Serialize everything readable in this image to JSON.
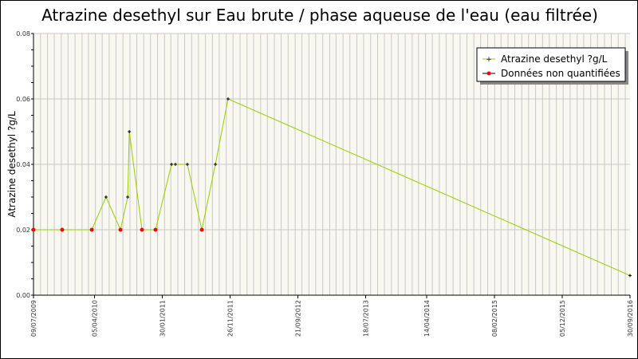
{
  "chart_data": {
    "type": "line",
    "title": "Atrazine desethyl sur Eau brute / phase aqueuse de l'eau (eau filtrée)",
    "xlabel": "",
    "ylabel": "Atrazine desethyl ?g/L",
    "ylim": [
      0,
      0.08
    ],
    "yticks": [
      "0.00",
      "0.02",
      "0.04",
      "0.06",
      "0.08"
    ],
    "xlim": [
      "2009-07-09",
      "2016-09-30"
    ],
    "xticks": [
      {
        "date": "2009-07-09",
        "label": "09/07/2009"
      },
      {
        "date": "2010-04-05",
        "label": "05/04/2010"
      },
      {
        "date": "2011-01-30",
        "label": "30/01/2011"
      },
      {
        "date": "2011-11-26",
        "label": "26/11/2011"
      },
      {
        "date": "2012-09-21",
        "label": "21/09/2012"
      },
      {
        "date": "2013-07-18",
        "label": "18/07/2013"
      },
      {
        "date": "2014-04-14",
        "label": "14/04/2014"
      },
      {
        "date": "2015-02-08",
        "label": "08/02/2015"
      },
      {
        "date": "2015-12-05",
        "label": "05/12/2015"
      },
      {
        "date": "2016-09-30",
        "label": "30/09/2016"
      }
    ],
    "grid": true,
    "legend_position": "top-right",
    "series": [
      {
        "name": "Atrazine desethyl ?g/L",
        "color": "#99cc00",
        "marker_color": "#000000",
        "points": [
          {
            "x": "2009-07-09",
            "y": 0.02,
            "nq": true
          },
          {
            "x": "2009-11-13",
            "y": 0.02,
            "nq": true
          },
          {
            "x": "2010-03-24",
            "y": 0.02,
            "nq": true
          },
          {
            "x": "2010-05-26",
            "y": 0.03
          },
          {
            "x": "2010-07-29",
            "y": 0.02,
            "nq": true
          },
          {
            "x": "2010-08-30",
            "y": 0.03
          },
          {
            "x": "2010-09-06",
            "y": 0.05
          },
          {
            "x": "2010-11-01",
            "y": 0.02,
            "nq": true
          },
          {
            "x": "2010-12-31",
            "y": 0.02,
            "nq": true
          },
          {
            "x": "2011-03-12",
            "y": 0.04
          },
          {
            "x": "2011-03-29",
            "y": 0.04
          },
          {
            "x": "2011-05-21",
            "y": 0.04
          },
          {
            "x": "2011-07-24",
            "y": 0.02,
            "nq": true
          },
          {
            "x": "2011-09-22",
            "y": 0.04
          },
          {
            "x": "2011-11-17",
            "y": 0.06
          },
          {
            "x": "2016-09-30",
            "y": 0.006
          }
        ]
      },
      {
        "name": "Données non quantifiées",
        "color": "#ff0000"
      }
    ]
  }
}
